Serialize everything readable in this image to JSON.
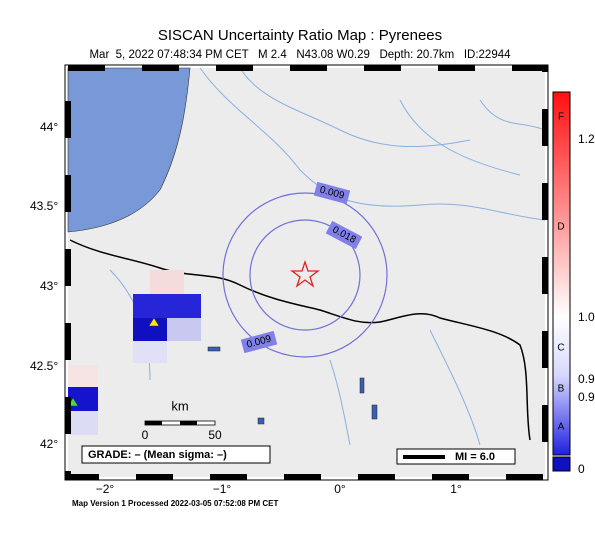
{
  "header": {
    "title": "SISCAN Uncertainty Ratio Map : Pyrenees",
    "subtitle": "Mar  5, 2022 07:48:34 PM CET   M 2.4   N43.08 W0.29   Depth: 20.7km   ID:22944"
  },
  "map": {
    "lat_labels": [
      "44°",
      "43.5°",
      "43°",
      "42.5°",
      "42°"
    ],
    "lon_labels": [
      "−2°",
      "−1°",
      "0°",
      "1°"
    ],
    "contour_labels": [
      "0.009",
      "0.018",
      "0.009"
    ],
    "scale": {
      "unit": "km",
      "start": "0",
      "end": "50"
    },
    "grade": "GRADE: – (Mean sigma: –)",
    "mi": "MI = 6.0"
  },
  "colorbar": {
    "grades": [
      "F",
      "D",
      "C",
      "B",
      "A"
    ],
    "labels": [
      "1.2",
      "1.0",
      "0.9",
      "0.9",
      "0"
    ]
  },
  "footer": "Map Version 1 Processed 2022-03-05 07:52:08 PM CET"
}
